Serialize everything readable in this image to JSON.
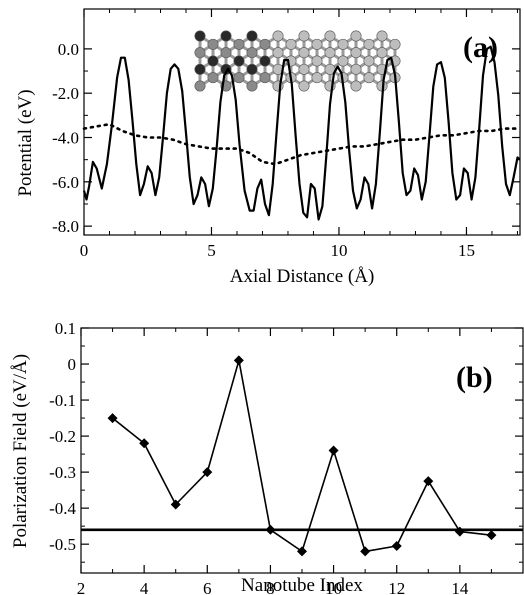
{
  "chart_data": [
    {
      "panel": "(a)",
      "type": "line",
      "xlabel": "Axial Distance (Å)",
      "ylabel": "Potential (eV)",
      "xlim": [
        0,
        17.1
      ],
      "ylim": [
        -8.4,
        1.8
      ],
      "xticks": [
        0,
        5,
        10,
        15
      ],
      "yticks": [
        0.0,
        -2.0,
        -4.0,
        -6.0,
        -8.0
      ],
      "xtick_labels": [
        "0",
        "5",
        "10",
        "15"
      ],
      "ytick_labels": [
        "0.0",
        "-2.0",
        "-4.0",
        "-6.0",
        "-8.0"
      ],
      "grid": false,
      "inset": "nanotube-structure-image",
      "series": [
        {
          "style": "solid",
          "x": [
            0.0,
            0.1,
            0.2,
            0.35,
            0.5,
            0.7,
            0.9,
            1.1,
            1.3,
            1.45,
            1.6,
            1.75,
            1.9,
            2.05,
            2.2,
            2.35,
            2.5,
            2.65,
            2.8,
            2.95,
            3.1,
            3.25,
            3.4,
            3.55,
            3.7,
            3.85,
            4.0,
            4.15,
            4.3,
            4.45,
            4.6,
            4.75,
            4.9,
            5.05,
            5.2,
            5.35,
            5.5,
            5.65,
            5.8,
            5.95,
            6.1,
            6.3,
            6.5,
            6.65,
            6.8,
            6.95,
            7.1,
            7.25,
            7.4,
            7.55,
            7.7,
            7.85,
            8.0,
            8.15,
            8.3,
            8.45,
            8.6,
            8.75,
            8.9,
            9.05,
            9.2,
            9.35,
            9.5,
            9.65,
            9.8,
            9.95,
            10.1,
            10.25,
            10.4,
            10.55,
            10.7,
            10.85,
            11.0,
            11.15,
            11.3,
            11.45,
            11.6,
            11.75,
            11.9,
            12.05,
            12.2,
            12.35,
            12.5,
            12.65,
            12.8,
            12.95,
            13.1,
            13.25,
            13.4,
            13.55,
            13.7,
            13.85,
            14.0,
            14.15,
            14.3,
            14.45,
            14.6,
            14.75,
            14.9,
            15.05,
            15.2,
            15.35,
            15.5,
            15.65,
            15.8,
            15.95,
            16.1,
            16.25,
            16.4,
            16.55,
            16.7,
            16.85,
            17.0,
            17.1
          ],
          "y": [
            -6.4,
            -6.8,
            -6.2,
            -5.1,
            -5.4,
            -6.3,
            -5.2,
            -3.4,
            -1.3,
            -0.4,
            -0.4,
            -1.4,
            -3.2,
            -5.2,
            -6.6,
            -6.1,
            -5.3,
            -5.6,
            -6.6,
            -5.8,
            -4.0,
            -2.0,
            -0.9,
            -0.7,
            -0.9,
            -1.9,
            -3.8,
            -5.8,
            -7.0,
            -6.6,
            -5.8,
            -6.1,
            -7.1,
            -6.3,
            -4.5,
            -2.4,
            -1.2,
            -0.9,
            -1.2,
            -2.3,
            -4.3,
            -6.4,
            -7.3,
            -7.3,
            -6.3,
            -5.9,
            -7.0,
            -7.5,
            -6.1,
            -3.8,
            -1.6,
            -0.5,
            -0.5,
            -1.6,
            -3.9,
            -6.1,
            -7.4,
            -7.6,
            -6.1,
            -6.3,
            -7.7,
            -7.1,
            -4.9,
            -2.5,
            -1.1,
            -0.8,
            -1.1,
            -2.4,
            -4.6,
            -6.4,
            -7.2,
            -6.8,
            -5.8,
            -6.1,
            -7.2,
            -6.1,
            -3.8,
            -1.4,
            -0.5,
            -0.4,
            -1.2,
            -3.3,
            -5.6,
            -6.6,
            -6.4,
            -5.4,
            -5.7,
            -6.8,
            -6.0,
            -3.9,
            -1.7,
            -0.7,
            -0.6,
            -1.3,
            -3.3,
            -5.6,
            -6.8,
            -6.6,
            -5.4,
            -5.6,
            -6.8,
            -5.8,
            -3.6,
            -1.2,
            0.0,
            0.1,
            -0.6,
            -2.1,
            -4.4,
            -6.1,
            -6.6,
            -5.8,
            -4.9,
            -5.0
          ]
        },
        {
          "style": "dotted",
          "x": [
            0.0,
            0.5,
            1.0,
            1.5,
            2.0,
            2.5,
            3.0,
            3.5,
            4.0,
            4.5,
            5.0,
            5.5,
            6.0,
            6.5,
            7.0,
            7.5,
            8.0,
            8.5,
            9.0,
            9.5,
            10.0,
            10.5,
            11.0,
            11.5,
            12.0,
            12.5,
            13.0,
            13.5,
            14.0,
            14.5,
            15.0,
            15.5,
            16.0,
            16.5,
            17.0
          ],
          "y": [
            -3.6,
            -3.5,
            -3.4,
            -3.7,
            -3.9,
            -4.0,
            -4.0,
            -4.1,
            -4.3,
            -4.4,
            -4.5,
            -4.5,
            -4.5,
            -4.7,
            -5.1,
            -5.2,
            -5.0,
            -4.8,
            -4.7,
            -4.6,
            -4.5,
            -4.4,
            -4.4,
            -4.3,
            -4.2,
            -4.1,
            -4.1,
            -4.0,
            -3.9,
            -3.9,
            -3.8,
            -3.7,
            -3.7,
            -3.6,
            -3.6
          ]
        }
      ]
    },
    {
      "panel": "(b)",
      "type": "line",
      "xlabel": "Nanotube Index",
      "ylabel": "Polarization Field (eV/Å)",
      "xlim": [
        2,
        16
      ],
      "ylim": [
        -0.58,
        0.1
      ],
      "xticks": [
        2,
        4,
        6,
        8,
        10,
        12,
        14
      ],
      "yticks": [
        0.1,
        0,
        -0.1,
        -0.2,
        -0.3,
        -0.4,
        -0.5
      ],
      "xtick_labels": [
        "2",
        "4",
        "6",
        "8",
        "10",
        "12",
        "14"
      ],
      "ytick_labels": [
        "0.1",
        "0",
        "-0.1",
        "-0.2",
        "-0.3",
        "-0.4",
        "-0.5"
      ],
      "grid": false,
      "reference_line": -0.46,
      "series": [
        {
          "marker": "diamond",
          "x": [
            3,
            4,
            5,
            6,
            7,
            8,
            9,
            10,
            11,
            12,
            13,
            14,
            15
          ],
          "y": [
            -0.15,
            -0.22,
            -0.39,
            -0.3,
            0.01,
            -0.46,
            -0.52,
            -0.24,
            -0.52,
            -0.505,
            -0.325,
            -0.465,
            -0.475
          ]
        }
      ]
    }
  ]
}
